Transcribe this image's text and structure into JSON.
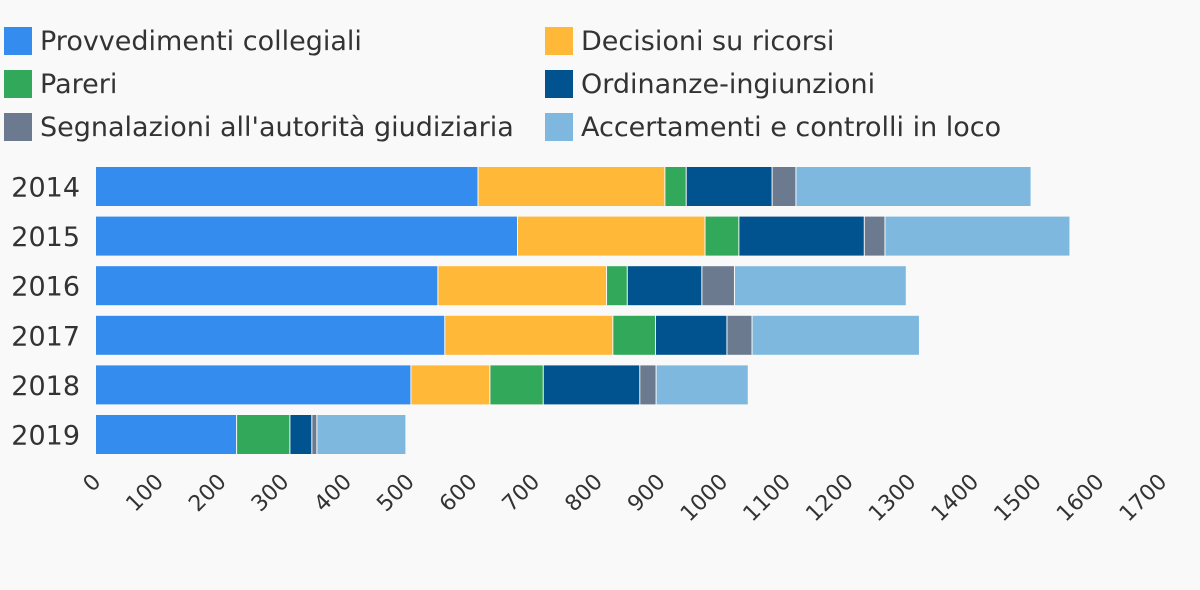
{
  "chart_data": {
    "type": "bar",
    "orientation": "horizontal",
    "stacked": true,
    "categories": [
      "2014",
      "2015",
      "2016",
      "2017",
      "2018",
      "2019"
    ],
    "series": [
      {
        "name": "Provvedimenti collegiali",
        "color": "#338cee",
        "values": [
          610,
          673,
          546,
          557,
          503,
          225
        ]
      },
      {
        "name": "Decisioni su ricorsi",
        "color": "#ffb838",
        "values": [
          298,
          299,
          269,
          268,
          126,
          0
        ]
      },
      {
        "name": "Pareri",
        "color": "#32a85a",
        "values": [
          34,
          54,
          33,
          68,
          85,
          85
        ]
      },
      {
        "name": "Ordinanze-ingiunzioni",
        "color": "#00538f",
        "values": [
          137,
          200,
          119,
          114,
          154,
          35
        ]
      },
      {
        "name": "Segnalazioni all'autorità giudiziaria",
        "color": "#6b7a8f",
        "values": [
          38,
          33,
          52,
          40,
          26,
          8
        ]
      },
      {
        "name": "Accertamenti e controlli in loco",
        "color": "#7fb8de",
        "values": [
          375,
          295,
          274,
          267,
          147,
          142
        ]
      }
    ],
    "xlim": [
      0,
      1700
    ],
    "xticks": [
      "0",
      "100",
      "200",
      "300",
      "400",
      "500",
      "600",
      "700",
      "800",
      "900",
      "1000",
      "1100",
      "1200",
      "1300",
      "1400",
      "1500",
      "1600",
      "1700"
    ],
    "legend_position": "top",
    "grid": false
  }
}
